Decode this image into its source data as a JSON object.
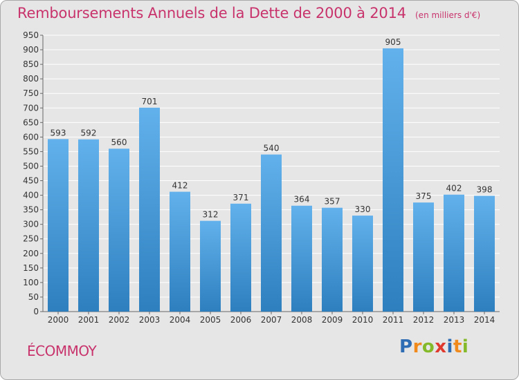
{
  "chart_data": {
    "type": "bar",
    "title": "Remboursements Annuels de la Dette de 2000 à 2014",
    "unit_note": "(en milliers d'€)",
    "categories": [
      "2000",
      "2001",
      "2002",
      "2003",
      "2004",
      "2005",
      "2006",
      "2007",
      "2008",
      "2009",
      "2010",
      "2011",
      "2012",
      "2013",
      "2014"
    ],
    "values": [
      593,
      592,
      560,
      701,
      412,
      312,
      371,
      540,
      364,
      357,
      330,
      905,
      375,
      402,
      398
    ],
    "ylim": [
      0,
      950
    ],
    "yticks": [
      0,
      50,
      100,
      150,
      200,
      250,
      300,
      350,
      400,
      450,
      500,
      550,
      600,
      650,
      700,
      750,
      800,
      850,
      900,
      950
    ],
    "grid": true,
    "bar_color_top": "#62b1ec",
    "bar_color_bottom": "#2d7fbe"
  },
  "commune": "ÉCOMMOY",
  "logo": {
    "letters": [
      "P",
      "r",
      "o",
      "x",
      "i",
      "t",
      "i"
    ],
    "colors": [
      "#2e6db4",
      "#f08a1c",
      "#84b92a",
      "#e03a2f",
      "#2e6db4",
      "#f08a1c",
      "#84b92a"
    ]
  }
}
